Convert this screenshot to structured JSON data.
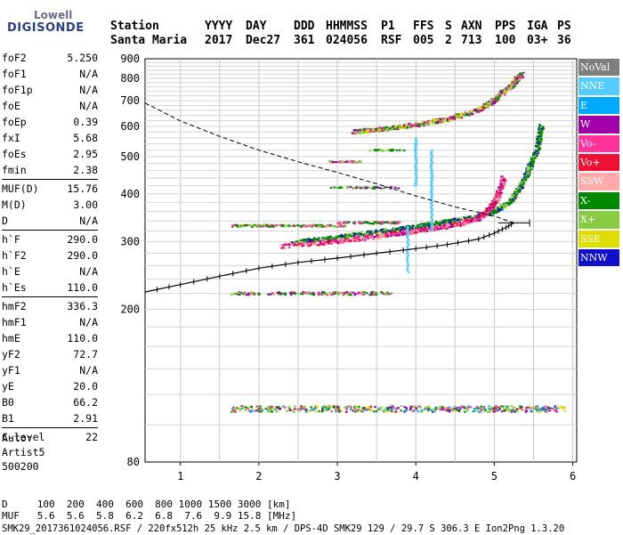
{
  "logo": {
    "line1": "Lowell",
    "line2": "DIGISONDE"
  },
  "header": {
    "labels": [
      "Station",
      "YYYY",
      "DAY",
      "DDD",
      "HHMMSS",
      "P1",
      "FFS",
      "S",
      "AXN",
      "PPS",
      "IGA",
      "PS"
    ],
    "values": [
      "Santa Maria",
      "2017",
      "Dec27",
      "361",
      "024056",
      "RSF",
      "005",
      "2",
      "713",
      "100",
      "03+",
      "36"
    ]
  },
  "params": [
    [
      {
        "k": "foF2",
        "v": "5.250"
      },
      {
        "k": "foF1",
        "v": "N/A"
      },
      {
        "k": "foF1p",
        "v": "N/A"
      },
      {
        "k": "foE",
        "v": "N/A"
      },
      {
        "k": "foEp",
        "v": "0.39"
      },
      {
        "k": "fxI",
        "v": "5.68"
      },
      {
        "k": "foEs",
        "v": "2.95"
      },
      {
        "k": "fmin",
        "v": "2.38"
      }
    ],
    [
      {
        "k": "MUF(D)",
        "v": "15.76"
      },
      {
        "k": "M(D)",
        "v": "3.00"
      },
      {
        "k": "D",
        "v": "N/A"
      }
    ],
    [
      {
        "k": "h`F",
        "v": "290.0"
      },
      {
        "k": "h`F2",
        "v": "290.0"
      },
      {
        "k": "h`E",
        "v": "N/A"
      },
      {
        "k": "h`Es",
        "v": "110.0"
      }
    ],
    [
      {
        "k": "hmF2",
        "v": "336.3"
      },
      {
        "k": "hmF1",
        "v": "N/A"
      },
      {
        "k": "hmE",
        "v": "110.0"
      },
      {
        "k": "yF2",
        "v": "72.7"
      },
      {
        "k": "yF1",
        "v": "N/A"
      },
      {
        "k": "yE",
        "v": "20.0"
      },
      {
        "k": "B0",
        "v": "66.2"
      },
      {
        "k": "B1",
        "v": "2.91"
      }
    ],
    [
      {
        "k": "C-level",
        "v": "22"
      }
    ]
  ],
  "auto": {
    "label": "Auto:",
    "artist": "Artist5",
    "version": "500200"
  },
  "legend": [
    {
      "name": "NoVal",
      "color": "#7f7f7f"
    },
    {
      "name": "NNE",
      "color": "#55ccff"
    },
    {
      "name": "E",
      "color": "#00aaff"
    },
    {
      "name": "W",
      "color": "#a000a8"
    },
    {
      "name": "Vo-",
      "color": "#ff3399"
    },
    {
      "name": "Vo+",
      "color": "#ee1133"
    },
    {
      "name": "SSW",
      "color": "#ffaaaa"
    },
    {
      "name": "X-",
      "color": "#008800"
    },
    {
      "name": "X+",
      "color": "#88cc44"
    },
    {
      "name": "SSE",
      "color": "#dddd00"
    },
    {
      "name": "NNW",
      "color": "#1111cc"
    }
  ],
  "footer": {
    "line1": "D     100  200  400  600  800 1000 1500 3000 [km]",
    "line2": "MUF   5.6  5.6  5.8  6.2  6.8  7.6  9.9 15.8 [MHz]",
    "line3": "SMK29_2017361024056.RSF / 220fx512h 25 kHz 2.5 km / DPS-4D SMK29 129 / 29.7 S 306.3 E Ion2Png 1.3.20"
  },
  "chart_data": {
    "type": "scatter",
    "xlabel": "",
    "ylabel": "",
    "xlim": [
      0.55,
      6.05
    ],
    "ylim": [
      80,
      900
    ],
    "xticks": [
      1,
      2,
      3,
      4,
      5,
      6
    ],
    "yticks": [
      80,
      200,
      300,
      400,
      500,
      600,
      700,
      800,
      900
    ],
    "y_scale": "log",
    "grid": true,
    "legend_position": "right",
    "series": [
      {
        "name": "X-",
        "style": "echo traces",
        "x": [
          2.4,
          3.0,
          3.5,
          4.0,
          4.4,
          4.8,
          5.0,
          5.2,
          5.35,
          5.45,
          5.55,
          5.6
        ],
        "y": [
          298,
          308,
          318,
          328,
          338,
          348,
          360,
          380,
          420,
          470,
          520,
          600
        ]
      },
      {
        "name": "Vo-",
        "style": "echo traces",
        "x": [
          2.3,
          3.0,
          3.5,
          4.0,
          4.5,
          4.8,
          4.95,
          5.05,
          5.12
        ],
        "y": [
          292,
          300,
          310,
          320,
          332,
          345,
          365,
          395,
          440
        ]
      },
      {
        "name": "Vo+",
        "style": "second-hop echo traces",
        "x": [
          3.2,
          3.6,
          4.0,
          4.4,
          4.8,
          5.0,
          5.2,
          5.35
        ],
        "y": [
          580,
          590,
          605,
          625,
          660,
          700,
          760,
          820
        ]
      },
      {
        "name": "profile",
        "style": "solid with error bars",
        "x": [
          0.55,
          1.0,
          1.5,
          2.0,
          2.5,
          3.0,
          3.5,
          4.0,
          4.4,
          4.8,
          5.0,
          5.15,
          5.25
        ],
        "y": [
          222,
          232,
          244,
          256,
          265,
          272,
          280,
          288,
          295,
          305,
          316,
          327,
          336
        ]
      },
      {
        "name": "profile-extrapolated",
        "style": "dashed",
        "x": [
          0.55,
          1.0,
          1.5,
          2.0,
          2.5,
          3.0,
          3.5,
          4.0,
          4.5,
          5.0,
          5.25
        ],
        "y": [
          690,
          620,
          565,
          520,
          485,
          455,
          425,
          395,
          370,
          350,
          336
        ]
      }
    ]
  }
}
